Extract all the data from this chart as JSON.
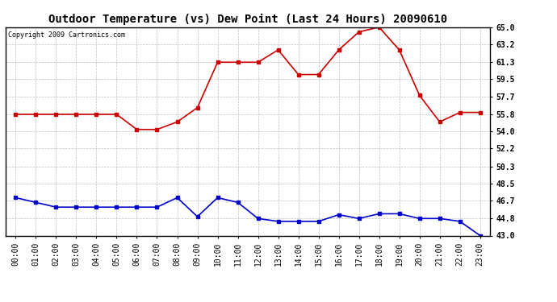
{
  "title": "Outdoor Temperature (vs) Dew Point (Last 24 Hours) 20090610",
  "copyright": "Copyright 2009 Cartronics.com",
  "hours": [
    "00:00",
    "01:00",
    "02:00",
    "03:00",
    "04:00",
    "05:00",
    "06:00",
    "07:00",
    "08:00",
    "09:00",
    "10:00",
    "11:00",
    "12:00",
    "13:00",
    "14:00",
    "15:00",
    "16:00",
    "17:00",
    "18:00",
    "19:00",
    "20:00",
    "21:00",
    "22:00",
    "23:00"
  ],
  "temp": [
    55.8,
    55.8,
    55.8,
    55.8,
    55.8,
    55.8,
    54.2,
    54.2,
    55.0,
    56.5,
    61.3,
    61.3,
    61.3,
    62.6,
    60.0,
    60.0,
    62.6,
    64.5,
    65.0,
    62.6,
    57.8,
    55.0,
    56.0,
    56.0
  ],
  "dew": [
    47.0,
    46.5,
    46.0,
    46.0,
    46.0,
    46.0,
    46.0,
    46.0,
    47.0,
    45.0,
    47.0,
    46.5,
    44.8,
    44.5,
    44.5,
    44.5,
    45.2,
    44.8,
    45.3,
    45.3,
    44.8,
    44.8,
    44.5,
    43.0
  ],
  "temp_color": "#cc0000",
  "dew_color": "#0000cc",
  "bg_color": "#ffffff",
  "plot_bg": "#ffffff",
  "grid_color": "#c0c0c0",
  "ylim": [
    43.0,
    65.0
  ],
  "yticks": [
    43.0,
    44.8,
    46.7,
    48.5,
    50.3,
    52.2,
    54.0,
    55.8,
    57.7,
    59.5,
    61.3,
    63.2,
    65.0
  ],
  "title_fontsize": 10,
  "tick_fontsize": 7,
  "copyright_fontsize": 6
}
